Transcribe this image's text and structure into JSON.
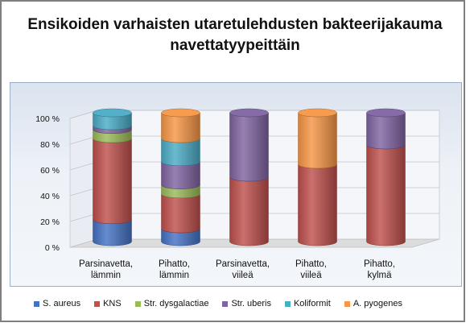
{
  "title": "Ensikoiden varhaisten utaretulehdusten bakteerijakauma navettatyypeittäin",
  "chart_data": {
    "type": "bar",
    "stacked": true,
    "percent": true,
    "style": "3d-cylinder",
    "title": "Ensikoiden varhaisten utaretulehdusten bakteerijakauma navettatyypeittäin",
    "categories": [
      "Parsinavetta, lämmin",
      "Pihatto, lämmin",
      "Parsinavetta, viileä",
      "Pihatto, viileä",
      "Pihatto, kylmä"
    ],
    "y_ticks": [
      "0 %",
      "20 %",
      "40 %",
      "60 %",
      "80 %",
      "100 %"
    ],
    "ylim": [
      0,
      100
    ],
    "grid": true,
    "legend_position": "bottom",
    "series": [
      {
        "name": "S. aureus",
        "color": "#4472c4",
        "values": [
          17,
          10,
          0,
          0,
          0
        ]
      },
      {
        "name": "KNS",
        "color": "#c0504d",
        "values": [
          63,
          27,
          50,
          60,
          75
        ]
      },
      {
        "name": "Str. dysgalactiae",
        "color": "#9bbb59",
        "values": [
          7,
          7,
          0,
          0,
          0
        ]
      },
      {
        "name": "Str. uberis",
        "color": "#8064a2",
        "values": [
          3,
          18,
          50,
          0,
          25
        ]
      },
      {
        "name": "Koliformit",
        "color": "#4bacc6",
        "values": [
          10,
          18,
          0,
          0,
          0
        ]
      },
      {
        "name": "A. pyogenes",
        "color": "#f79646",
        "values": [
          0,
          20,
          0,
          40,
          0
        ]
      }
    ]
  }
}
